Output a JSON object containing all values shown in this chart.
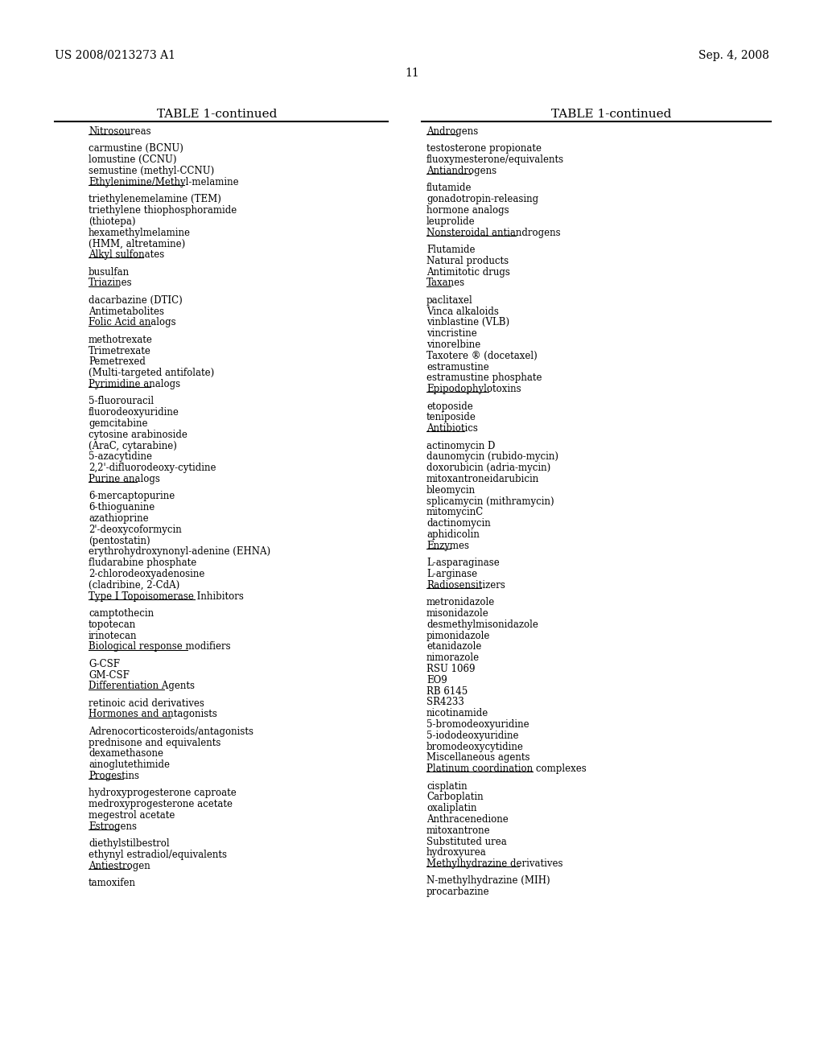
{
  "header_left": "US 2008/0213273 A1",
  "header_right": "Sep. 4, 2008",
  "page_number": "11",
  "table_title": "TABLE 1-continued",
  "bg_color": "#ffffff",
  "left_column": [
    {
      "text": "Nitrosoureas",
      "underline": true,
      "gap_before": false
    },
    {
      "text": "",
      "underline": false,
      "gap_before": false
    },
    {
      "text": "carmustine (BCNU)",
      "underline": false,
      "gap_before": false
    },
    {
      "text": "lomustine (CCNU)",
      "underline": false,
      "gap_before": false
    },
    {
      "text": "semustine (methyl-CCNU)",
      "underline": false,
      "gap_before": false
    },
    {
      "text": "Ethylenimine/Methyl-melamine",
      "underline": true,
      "gap_before": false
    },
    {
      "text": "",
      "underline": false,
      "gap_before": false
    },
    {
      "text": "triethylenemelamine (TEM)",
      "underline": false,
      "gap_before": false
    },
    {
      "text": "triethylene thiophosphoramide",
      "underline": false,
      "gap_before": false
    },
    {
      "text": "(thiotepa)",
      "underline": false,
      "gap_before": false
    },
    {
      "text": "hexamethylmelamine",
      "underline": false,
      "gap_before": false
    },
    {
      "text": "(HMM, altretamine)",
      "underline": false,
      "gap_before": false
    },
    {
      "text": "Alkyl sulfonates",
      "underline": true,
      "gap_before": false
    },
    {
      "text": "",
      "underline": false,
      "gap_before": false
    },
    {
      "text": "busulfan",
      "underline": false,
      "gap_before": false
    },
    {
      "text": "Triazines",
      "underline": true,
      "gap_before": false
    },
    {
      "text": "",
      "underline": false,
      "gap_before": false
    },
    {
      "text": "dacarbazine (DTIC)",
      "underline": false,
      "gap_before": false
    },
    {
      "text": "Antimetabolites",
      "underline": false,
      "gap_before": false
    },
    {
      "text": "Folic Acid analogs",
      "underline": true,
      "gap_before": false
    },
    {
      "text": "",
      "underline": false,
      "gap_before": false
    },
    {
      "text": "methotrexate",
      "underline": false,
      "gap_before": false
    },
    {
      "text": "Trimetrexate",
      "underline": false,
      "gap_before": false
    },
    {
      "text": "Pemetrexed",
      "underline": false,
      "gap_before": false
    },
    {
      "text": "(Multi-targeted antifolate)",
      "underline": false,
      "gap_before": false
    },
    {
      "text": "Pyrimidine analogs",
      "underline": true,
      "gap_before": false
    },
    {
      "text": "",
      "underline": false,
      "gap_before": false
    },
    {
      "text": "5-fluorouracil",
      "underline": false,
      "gap_before": false
    },
    {
      "text": "fluorodeoxyuridine",
      "underline": false,
      "gap_before": false
    },
    {
      "text": "gemcitabine",
      "underline": false,
      "gap_before": false
    },
    {
      "text": "cytosine arabinoside",
      "underline": false,
      "gap_before": false
    },
    {
      "text": "(AraC, cytarabine)",
      "underline": false,
      "gap_before": false
    },
    {
      "text": "5-azacytidine",
      "underline": false,
      "gap_before": false
    },
    {
      "text": "2,2'-difluorodeoxy-cytidine",
      "underline": false,
      "gap_before": false
    },
    {
      "text": "Purine analogs",
      "underline": true,
      "gap_before": false
    },
    {
      "text": "",
      "underline": false,
      "gap_before": false
    },
    {
      "text": "6-mercaptopurine",
      "underline": false,
      "gap_before": false
    },
    {
      "text": "6-thioguanine",
      "underline": false,
      "gap_before": false
    },
    {
      "text": "azathioprine",
      "underline": false,
      "gap_before": false
    },
    {
      "text": "2'-deoxycoformycin",
      "underline": false,
      "gap_before": false
    },
    {
      "text": "(pentostatin)",
      "underline": false,
      "gap_before": false
    },
    {
      "text": "erythrohydroxynonyl-adenine (EHNA)",
      "underline": false,
      "gap_before": false
    },
    {
      "text": "fludarabine phosphate",
      "underline": false,
      "gap_before": false
    },
    {
      "text": "2-chlorodeoxyadenosine",
      "underline": false,
      "gap_before": false
    },
    {
      "text": "(cladribine, 2-CdA)",
      "underline": false,
      "gap_before": false
    },
    {
      "text": "Type I Topoisomerase Inhibitors",
      "underline": true,
      "gap_before": false
    },
    {
      "text": "",
      "underline": false,
      "gap_before": false
    },
    {
      "text": "camptothecin",
      "underline": false,
      "gap_before": false
    },
    {
      "text": "topotecan",
      "underline": false,
      "gap_before": false
    },
    {
      "text": "irinotecan",
      "underline": false,
      "gap_before": false
    },
    {
      "text": "Biological response modifiers",
      "underline": true,
      "gap_before": false
    },
    {
      "text": "",
      "underline": false,
      "gap_before": false
    },
    {
      "text": "G-CSF",
      "underline": false,
      "gap_before": false
    },
    {
      "text": "GM-CSF",
      "underline": false,
      "gap_before": false
    },
    {
      "text": "Differentiation Agents",
      "underline": true,
      "gap_before": false
    },
    {
      "text": "",
      "underline": false,
      "gap_before": false
    },
    {
      "text": "retinoic acid derivatives",
      "underline": false,
      "gap_before": false
    },
    {
      "text": "Hormones and antagonists",
      "underline": true,
      "gap_before": false
    },
    {
      "text": "",
      "underline": false,
      "gap_before": false
    },
    {
      "text": "Adrenocorticosteroids/antagonists",
      "underline": false,
      "gap_before": false
    },
    {
      "text": "prednisone and equivalents",
      "underline": false,
      "gap_before": false
    },
    {
      "text": "dexamethasone",
      "underline": false,
      "gap_before": false
    },
    {
      "text": "ainoglutethimide",
      "underline": false,
      "gap_before": false
    },
    {
      "text": "Progestins",
      "underline": true,
      "gap_before": false
    },
    {
      "text": "",
      "underline": false,
      "gap_before": false
    },
    {
      "text": "hydroxyprogesterone caproate",
      "underline": false,
      "gap_before": false
    },
    {
      "text": "medroxyprogesterone acetate",
      "underline": false,
      "gap_before": false
    },
    {
      "text": "megestrol acetate",
      "underline": false,
      "gap_before": false
    },
    {
      "text": "Estrogens",
      "underline": true,
      "gap_before": false
    },
    {
      "text": "",
      "underline": false,
      "gap_before": false
    },
    {
      "text": "diethylstilbestrol",
      "underline": false,
      "gap_before": false
    },
    {
      "text": "ethynyl estradiol/equivalents",
      "underline": false,
      "gap_before": false
    },
    {
      "text": "Antiestrogen",
      "underline": true,
      "gap_before": false
    },
    {
      "text": "",
      "underline": false,
      "gap_before": false
    },
    {
      "text": "tamoxifen",
      "underline": false,
      "gap_before": false
    }
  ],
  "right_column": [
    {
      "text": "Androgens",
      "underline": true,
      "gap_before": false
    },
    {
      "text": "",
      "underline": false,
      "gap_before": false
    },
    {
      "text": "testosterone propionate",
      "underline": false,
      "gap_before": false
    },
    {
      "text": "fluoxymesterone/equivalents",
      "underline": false,
      "gap_before": false
    },
    {
      "text": "Antiandrogens",
      "underline": true,
      "gap_before": false
    },
    {
      "text": "",
      "underline": false,
      "gap_before": false
    },
    {
      "text": "flutamide",
      "underline": false,
      "gap_before": false
    },
    {
      "text": "gonadotropin-releasing",
      "underline": false,
      "gap_before": false
    },
    {
      "text": "hormone analogs",
      "underline": false,
      "gap_before": false
    },
    {
      "text": "leuprolide",
      "underline": false,
      "gap_before": false
    },
    {
      "text": "Nonsteroidal antiandrogens",
      "underline": true,
      "gap_before": false
    },
    {
      "text": "",
      "underline": false,
      "gap_before": false
    },
    {
      "text": "Flutamide",
      "underline": false,
      "gap_before": false
    },
    {
      "text": "Natural products",
      "underline": false,
      "gap_before": false
    },
    {
      "text": "Antimitotic drugs",
      "underline": false,
      "gap_before": false
    },
    {
      "text": "Taxanes",
      "underline": true,
      "gap_before": false
    },
    {
      "text": "",
      "underline": false,
      "gap_before": false
    },
    {
      "text": "paclitaxel",
      "underline": false,
      "gap_before": false
    },
    {
      "text": "Vinca alkaloids",
      "underline": false,
      "gap_before": false
    },
    {
      "text": "vinblastine (VLB)",
      "underline": false,
      "gap_before": false
    },
    {
      "text": "vincristine",
      "underline": false,
      "gap_before": false
    },
    {
      "text": "vinorelbine",
      "underline": false,
      "gap_before": false
    },
    {
      "text": "Taxotere ® (docetaxel)",
      "underline": false,
      "gap_before": false
    },
    {
      "text": "estramustine",
      "underline": false,
      "gap_before": false
    },
    {
      "text": "estramustine phosphate",
      "underline": false,
      "gap_before": false
    },
    {
      "text": "Epipodophylotoxins",
      "underline": true,
      "gap_before": false
    },
    {
      "text": "",
      "underline": false,
      "gap_before": false
    },
    {
      "text": "etoposide",
      "underline": false,
      "gap_before": false
    },
    {
      "text": "teniposide",
      "underline": false,
      "gap_before": false
    },
    {
      "text": "Antibiotics",
      "underline": true,
      "gap_before": false
    },
    {
      "text": "",
      "underline": false,
      "gap_before": false
    },
    {
      "text": "actinomycin D",
      "underline": false,
      "gap_before": false
    },
    {
      "text": "daunomycin (rubido-mycin)",
      "underline": false,
      "gap_before": false
    },
    {
      "text": "doxorubicin (adria-mycin)",
      "underline": false,
      "gap_before": false
    },
    {
      "text": "mitoxantroneidarubicin",
      "underline": false,
      "gap_before": false
    },
    {
      "text": "bleomycin",
      "underline": false,
      "gap_before": false
    },
    {
      "text": "splicamycin (mithramycin)",
      "underline": false,
      "gap_before": false
    },
    {
      "text": "mitomycinC",
      "underline": false,
      "gap_before": false
    },
    {
      "text": "dactinomycin",
      "underline": false,
      "gap_before": false
    },
    {
      "text": "aphidicolin",
      "underline": false,
      "gap_before": false
    },
    {
      "text": "Enzymes",
      "underline": true,
      "gap_before": false
    },
    {
      "text": "",
      "underline": false,
      "gap_before": false
    },
    {
      "text": "L-asparaginase",
      "underline": false,
      "gap_before": false
    },
    {
      "text": "L-arginase",
      "underline": false,
      "gap_before": false
    },
    {
      "text": "Radiosensitizers",
      "underline": true,
      "gap_before": false
    },
    {
      "text": "",
      "underline": false,
      "gap_before": false
    },
    {
      "text": "metronidazole",
      "underline": false,
      "gap_before": false
    },
    {
      "text": "misonidazole",
      "underline": false,
      "gap_before": false
    },
    {
      "text": "desmethylmisonidazole",
      "underline": false,
      "gap_before": false
    },
    {
      "text": "pimonidazole",
      "underline": false,
      "gap_before": false
    },
    {
      "text": "etanidazole",
      "underline": false,
      "gap_before": false
    },
    {
      "text": "nimorazole",
      "underline": false,
      "gap_before": false
    },
    {
      "text": "RSU 1069",
      "underline": false,
      "gap_before": false
    },
    {
      "text": "EO9",
      "underline": false,
      "gap_before": false
    },
    {
      "text": "RB 6145",
      "underline": false,
      "gap_before": false
    },
    {
      "text": "SR4233",
      "underline": false,
      "gap_before": false
    },
    {
      "text": "nicotinamide",
      "underline": false,
      "gap_before": false
    },
    {
      "text": "5-bromodeoxyuridine",
      "underline": false,
      "gap_before": false
    },
    {
      "text": "5-iododeoxyuridine",
      "underline": false,
      "gap_before": false
    },
    {
      "text": "bromodeoxycytidine",
      "underline": false,
      "gap_before": false
    },
    {
      "text": "Miscellaneous agents",
      "underline": false,
      "gap_before": false
    },
    {
      "text": "Platinum coordination complexes",
      "underline": true,
      "gap_before": false
    },
    {
      "text": "",
      "underline": false,
      "gap_before": false
    },
    {
      "text": "cisplatin",
      "underline": false,
      "gap_before": false
    },
    {
      "text": "Carboplatin",
      "underline": false,
      "gap_before": false
    },
    {
      "text": "oxaliplatin",
      "underline": false,
      "gap_before": false
    },
    {
      "text": "Anthracenedione",
      "underline": false,
      "gap_before": false
    },
    {
      "text": "mitoxantrone",
      "underline": false,
      "gap_before": false
    },
    {
      "text": "Substituted urea",
      "underline": false,
      "gap_before": false
    },
    {
      "text": "hydroxyurea",
      "underline": false,
      "gap_before": false
    },
    {
      "text": "Methylhydrazine derivatives",
      "underline": true,
      "gap_before": false
    },
    {
      "text": "",
      "underline": false,
      "gap_before": false
    },
    {
      "text": "N-methylhydrazine (MIH)",
      "underline": false,
      "gap_before": false
    },
    {
      "text": "procarbazine",
      "underline": false,
      "gap_before": false
    }
  ]
}
